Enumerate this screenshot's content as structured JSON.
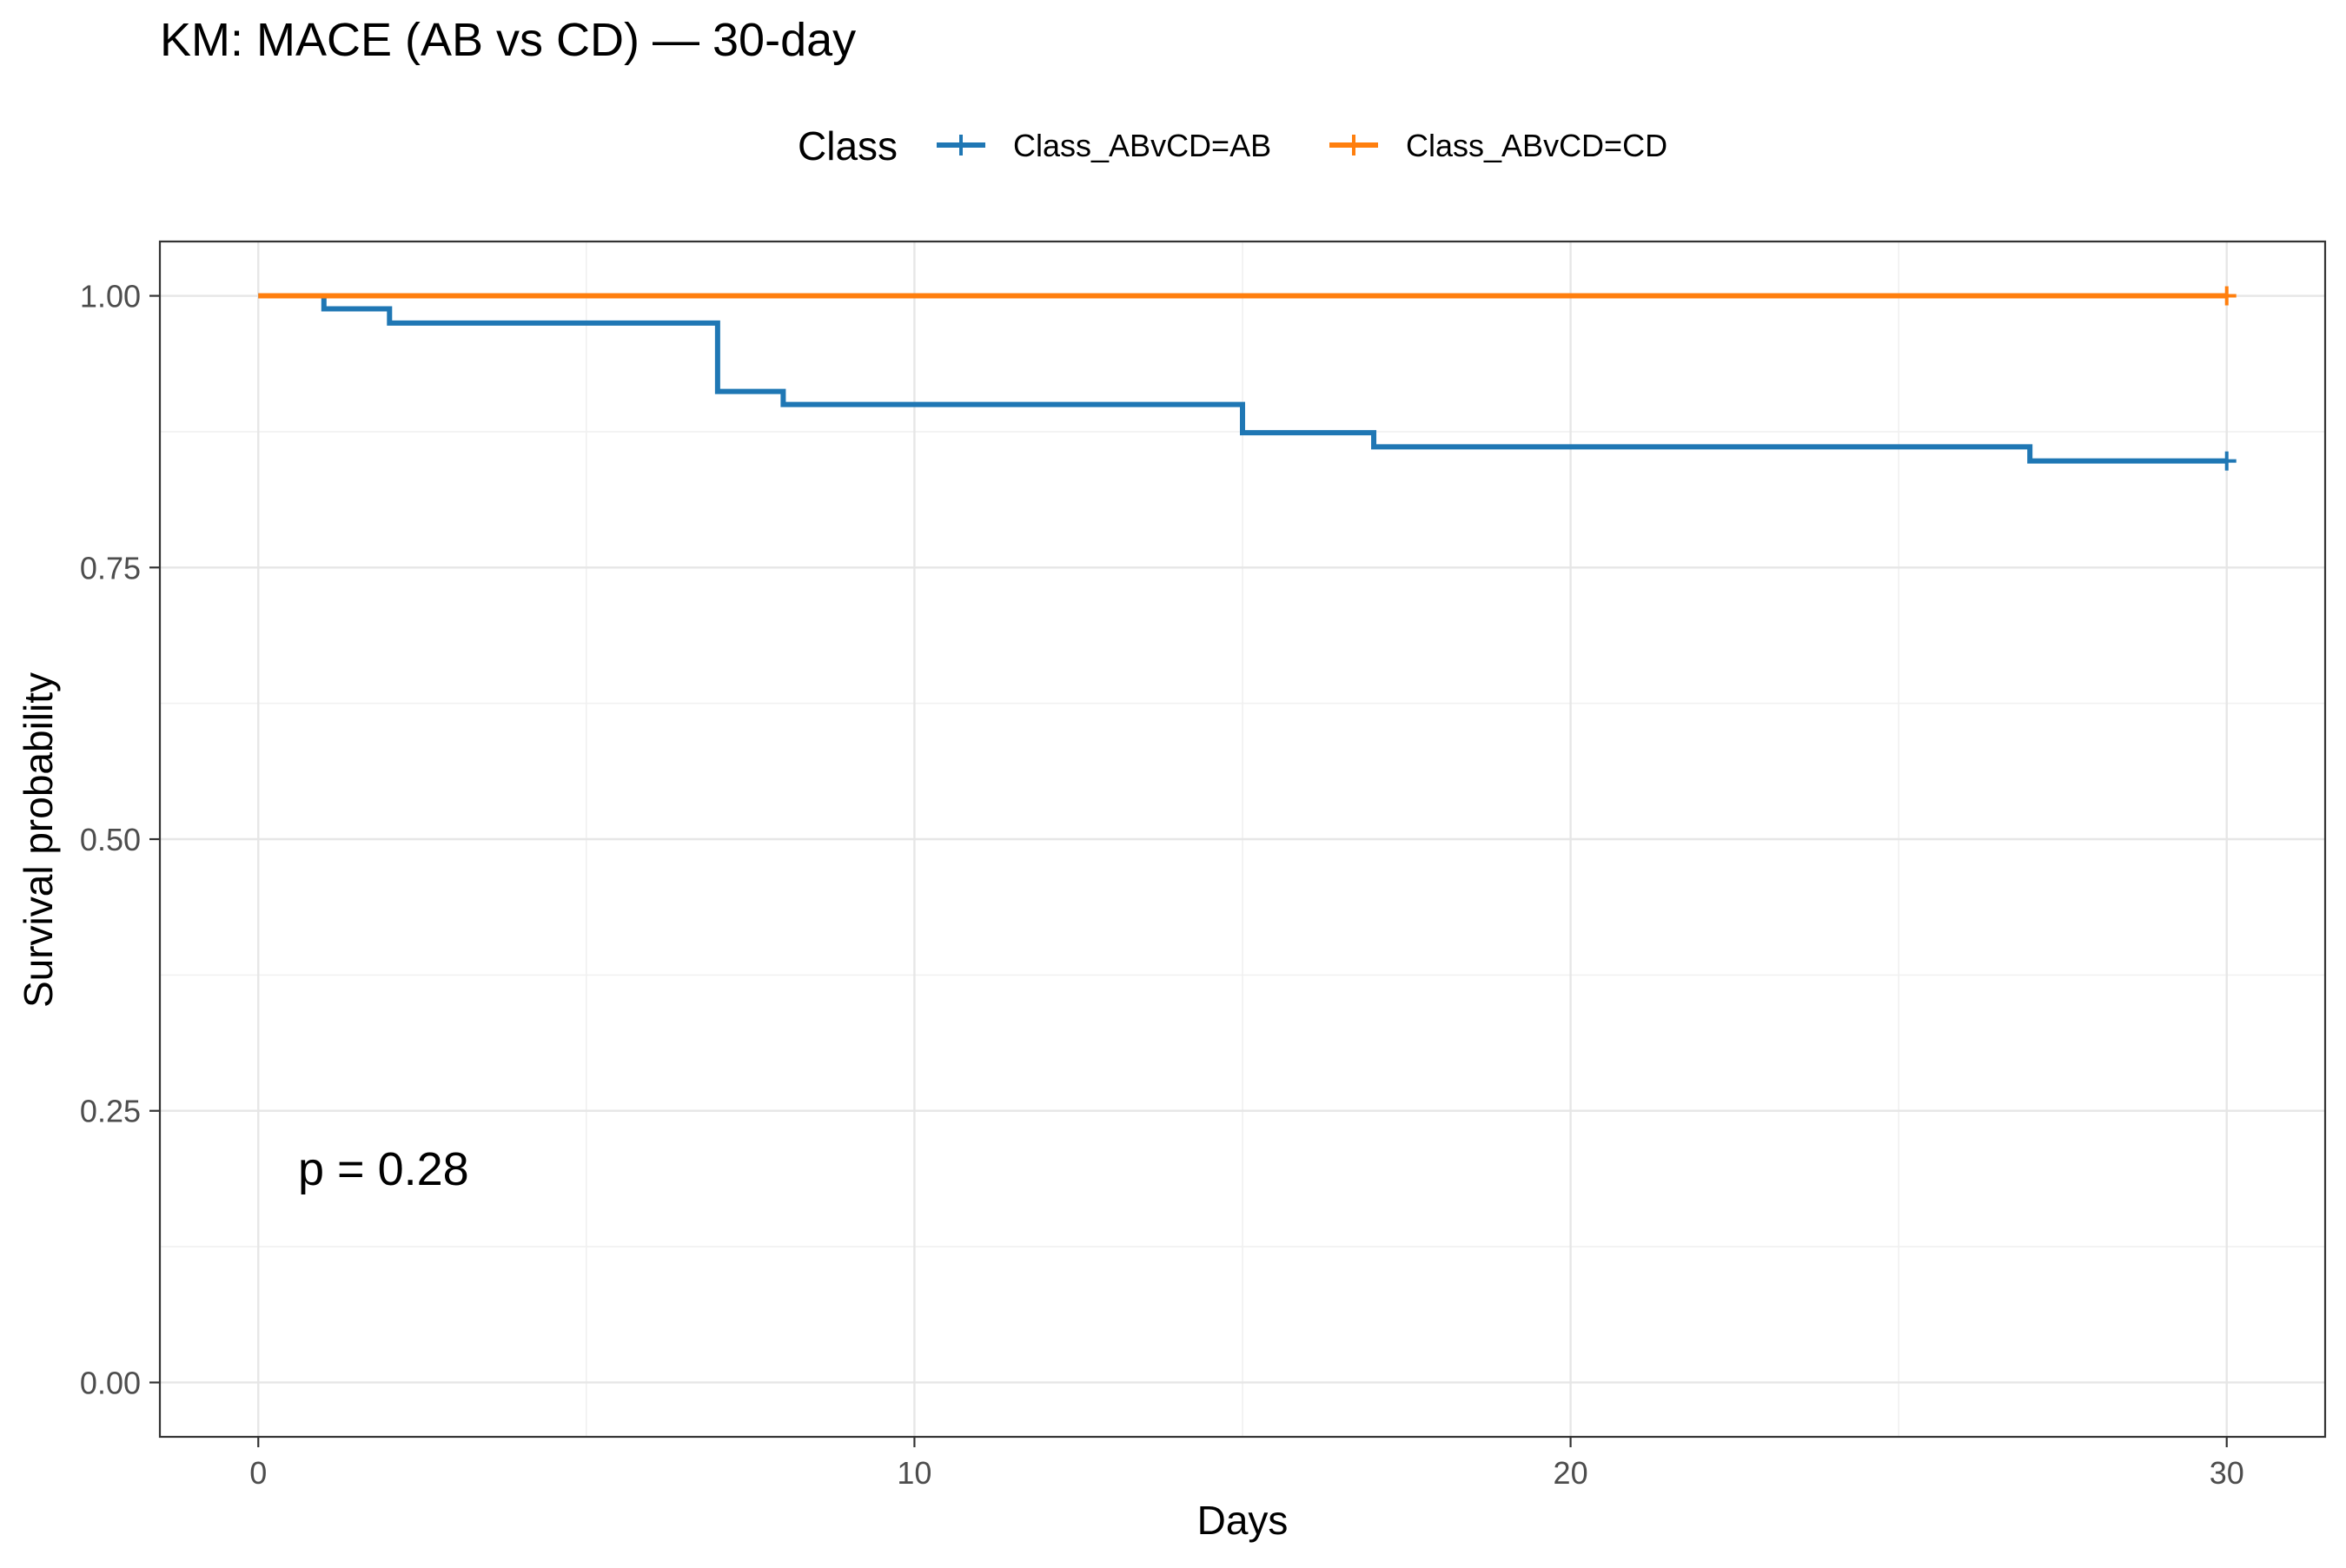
{
  "chart_data": {
    "type": "line",
    "title": "KM: MACE (AB vs CD) — 30-day",
    "xlabel": "Days",
    "ylabel": "Survival probability",
    "xlim": [
      -1.5,
      31.5
    ],
    "ylim": [
      -0.05,
      1.05
    ],
    "x_ticks": [
      0,
      10,
      20,
      30
    ],
    "x_tick_labels": [
      "0",
      "10",
      "20",
      "30"
    ],
    "y_ticks": [
      0,
      0.25,
      0.5,
      0.75,
      1
    ],
    "y_tick_labels": [
      "0.00",
      "0.25",
      "0.50",
      "0.75",
      "1.00"
    ],
    "grid": true,
    "legend": {
      "title": "Class",
      "position": "top",
      "entries": [
        "Class_ABvCD=AB",
        "Class_ABvCD=CD"
      ]
    },
    "annotation": "p = 0.28",
    "series": [
      {
        "name": "Class_ABvCD=AB",
        "color": "#1f77b4",
        "step": true,
        "x": [
          0,
          1,
          2,
          7,
          8,
          15,
          17,
          27,
          30
        ],
        "y": [
          1.0,
          0.988,
          0.975,
          0.912,
          0.9,
          0.874,
          0.861,
          0.848,
          0.848
        ],
        "censor_x": [
          30
        ],
        "censor_y": [
          0.848
        ]
      },
      {
        "name": "Class_ABvCD=CD",
        "color": "#ff7f0e",
        "step": true,
        "x": [
          0,
          30
        ],
        "y": [
          1.0,
          1.0
        ],
        "censor_x": [
          30
        ],
        "censor_y": [
          1.0
        ]
      }
    ]
  }
}
